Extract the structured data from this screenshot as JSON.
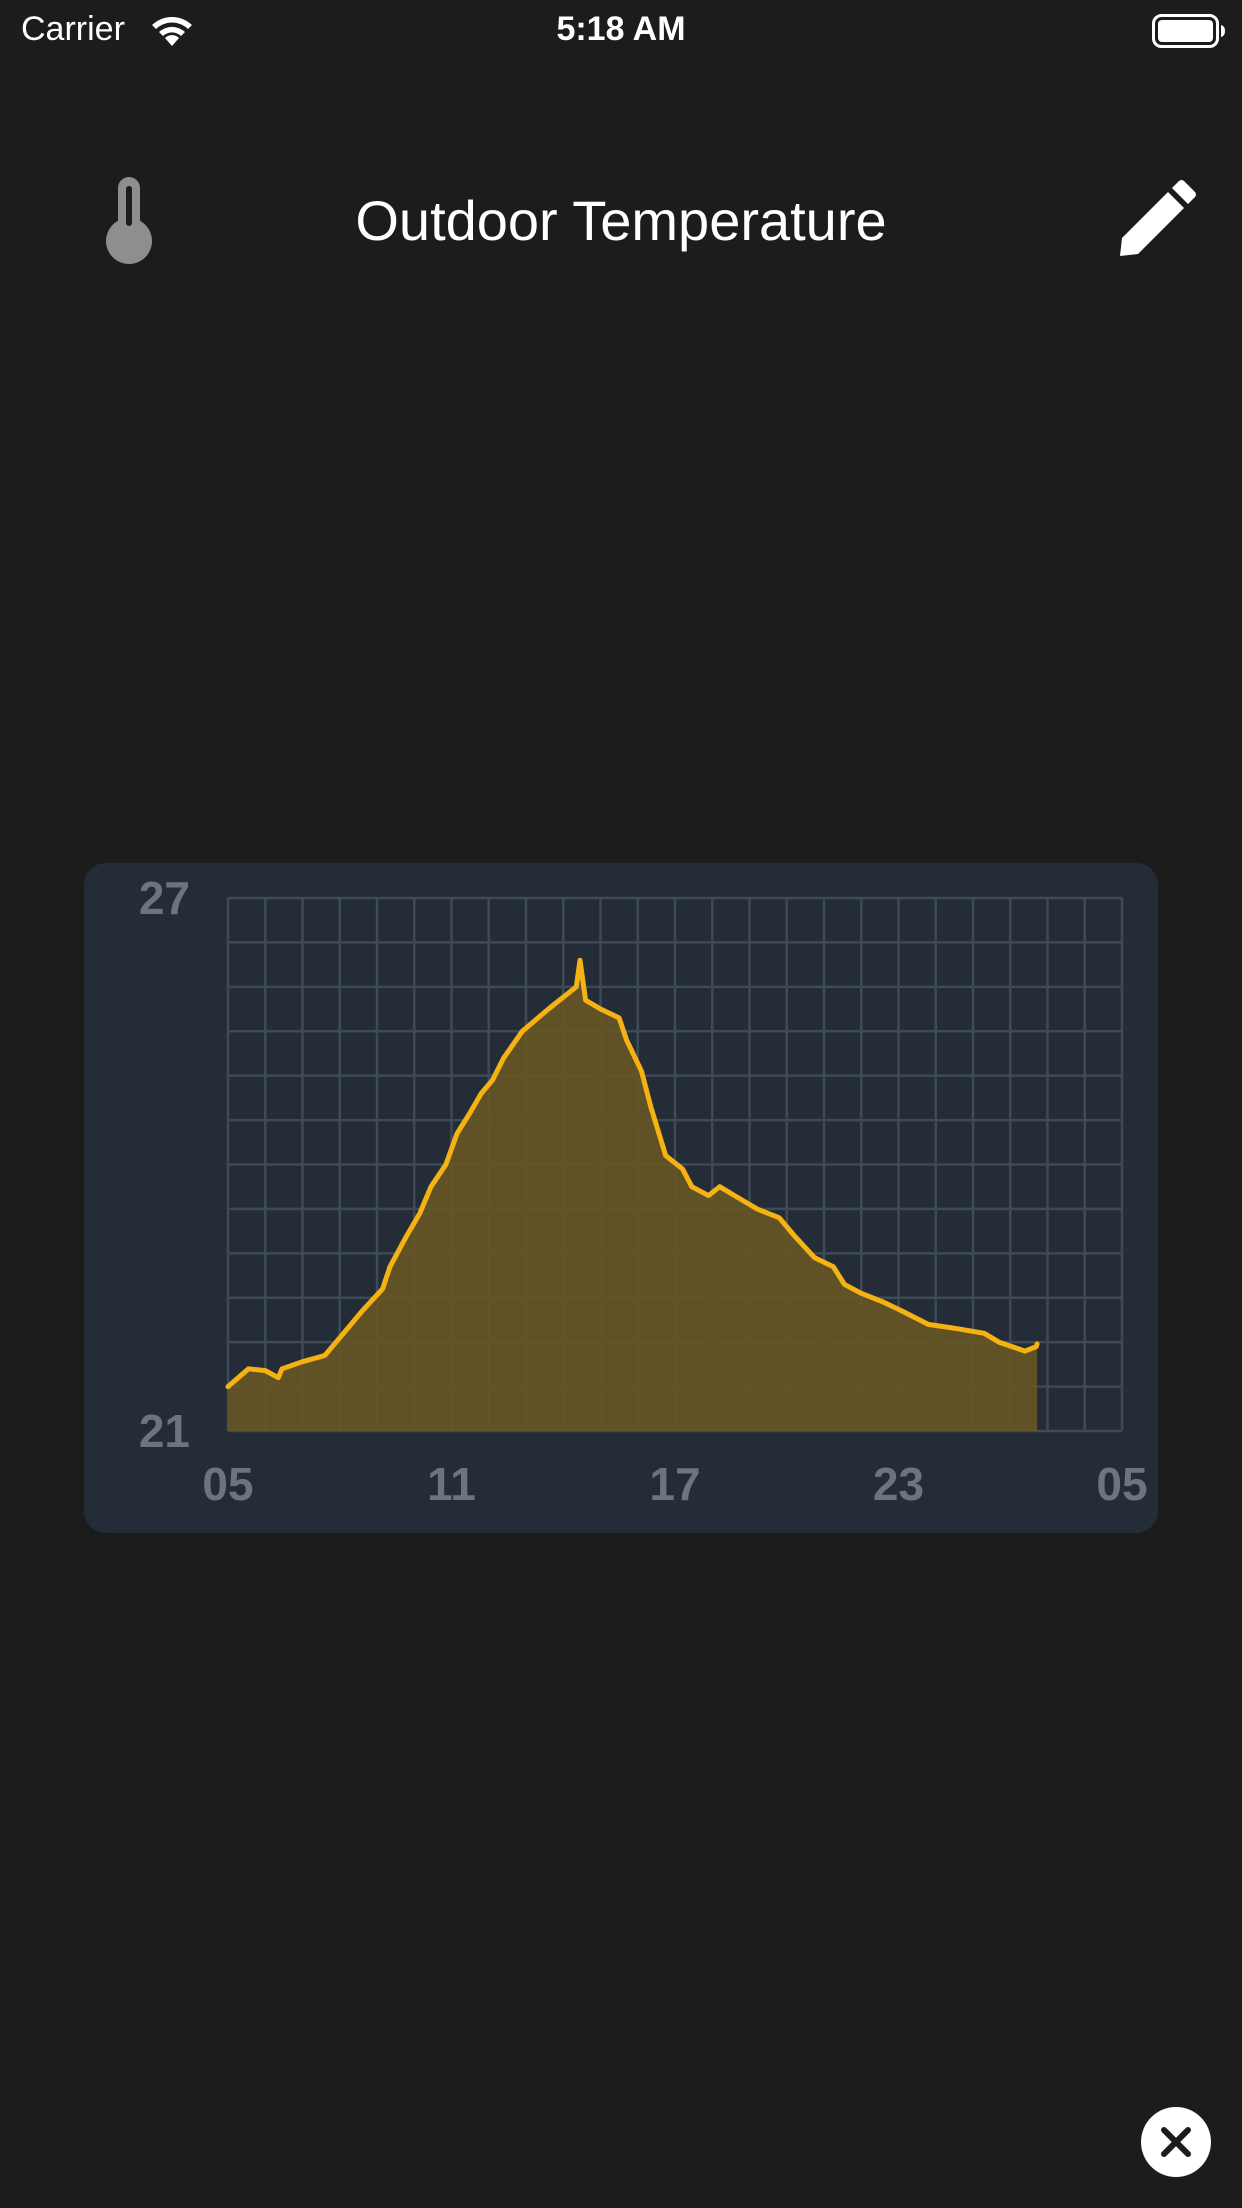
{
  "status_bar": {
    "carrier": "Carrier",
    "time": "5:18 AM",
    "wifi_icon": "wifi-icon",
    "battery_icon": "battery-icon"
  },
  "header": {
    "title": "Outdoor Temperature",
    "left_icon": "thermometer-icon",
    "right_icon": "pencil-icon"
  },
  "colors": {
    "background": "#1c1c1c",
    "card": "#232c37",
    "grid": "#3e4a56",
    "line": "#f4b213",
    "fill": "#665525",
    "tick": "#6c7480",
    "thermometer": "#8e8e8e"
  },
  "chart_data": {
    "type": "area",
    "title": "",
    "xlabel": "",
    "ylabel": "",
    "ylim": [
      21,
      27
    ],
    "xlim": [
      5,
      29
    ],
    "x_ticks": [
      "05",
      "11",
      "17",
      "23",
      "05"
    ],
    "x_tick_values": [
      5,
      11,
      17,
      23,
      29
    ],
    "y_ticks": [
      "27",
      "21"
    ],
    "y_tick_values": [
      27,
      21
    ],
    "grid": true,
    "series": [
      {
        "values": [
          [
            5.0,
            21.5
          ],
          [
            5.55,
            21.7
          ],
          [
            6.0,
            21.68
          ],
          [
            6.35,
            21.6
          ],
          [
            6.45,
            21.7
          ],
          [
            7.0,
            21.78
          ],
          [
            7.6,
            21.85
          ],
          [
            8.1,
            22.1
          ],
          [
            8.6,
            22.35
          ],
          [
            9.15,
            22.6
          ],
          [
            9.35,
            22.85
          ],
          [
            9.8,
            23.2
          ],
          [
            10.15,
            23.45
          ],
          [
            10.45,
            23.75
          ],
          [
            10.85,
            24.0
          ],
          [
            11.15,
            24.35
          ],
          [
            11.45,
            24.55
          ],
          [
            11.8,
            24.8
          ],
          [
            12.1,
            24.95
          ],
          [
            12.4,
            25.2
          ],
          [
            12.9,
            25.5
          ],
          [
            13.6,
            25.75
          ],
          [
            14.35,
            26.0
          ],
          [
            14.45,
            26.3
          ],
          [
            14.6,
            25.85
          ],
          [
            15.0,
            25.75
          ],
          [
            15.5,
            25.65
          ],
          [
            15.7,
            25.4
          ],
          [
            16.1,
            25.05
          ],
          [
            16.35,
            24.65
          ],
          [
            16.75,
            24.1
          ],
          [
            17.2,
            23.95
          ],
          [
            17.45,
            23.75
          ],
          [
            17.9,
            23.65
          ],
          [
            18.2,
            23.75
          ],
          [
            18.6,
            23.65
          ],
          [
            19.2,
            23.5
          ],
          [
            19.8,
            23.4
          ],
          [
            20.2,
            23.2
          ],
          [
            20.75,
            22.95
          ],
          [
            21.25,
            22.85
          ],
          [
            21.55,
            22.65
          ],
          [
            22.0,
            22.55
          ],
          [
            22.6,
            22.45
          ],
          [
            23.1,
            22.35
          ],
          [
            23.8,
            22.2
          ],
          [
            24.6,
            22.15
          ],
          [
            25.3,
            22.1
          ],
          [
            25.7,
            22.0
          ],
          [
            26.4,
            21.9
          ],
          [
            26.7,
            21.95
          ],
          [
            26.72,
            21.98
          ]
        ]
      }
    ]
  }
}
